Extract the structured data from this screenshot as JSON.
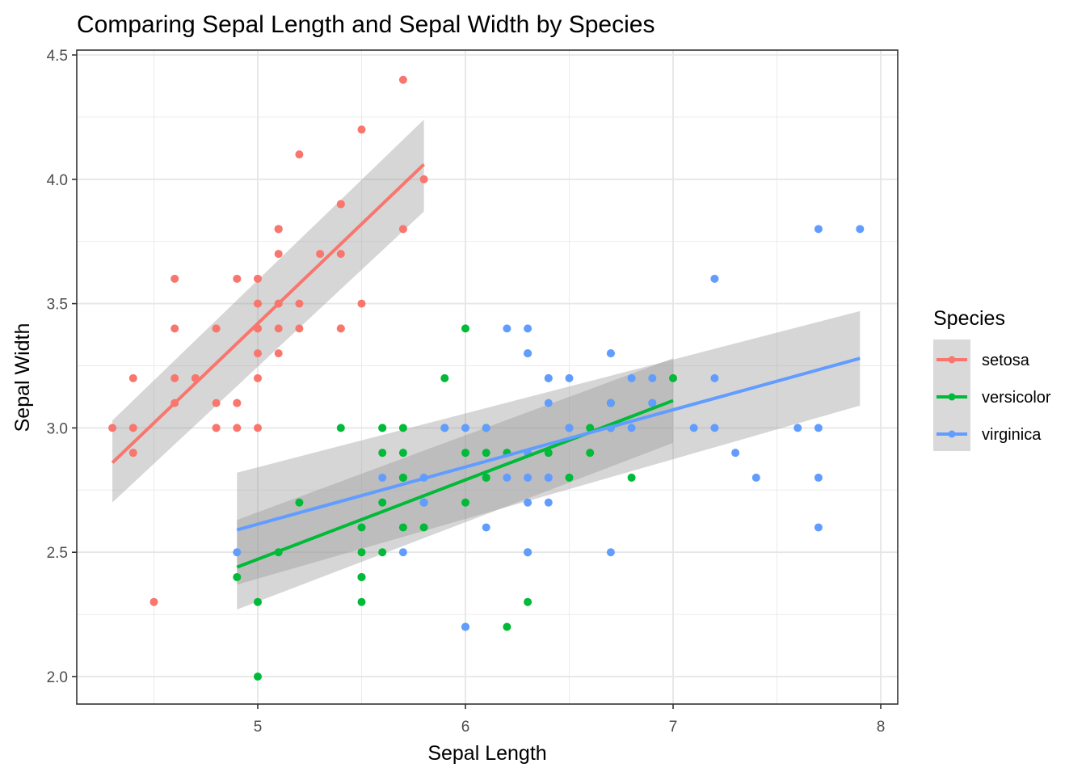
{
  "chart_data": {
    "type": "scatter",
    "title": "Comparing Sepal Length and Sepal Width by Species",
    "xlabel": "Sepal Length",
    "ylabel": "Sepal Width",
    "xlim": [
      4.18,
      8.02
    ],
    "ylim": [
      1.88,
      4.52
    ],
    "xticks": [
      5,
      6,
      7,
      8
    ],
    "xtick_labels": [
      "5",
      "6",
      "7",
      "8"
    ],
    "yticks": [
      2.0,
      2.5,
      3.0,
      3.5,
      4.0,
      4.5
    ],
    "ytick_labels": [
      "2.0",
      "2.5",
      "3.0",
      "3.5",
      "4.0",
      "4.5"
    ],
    "x_minor": [
      4.5,
      5.5,
      6.5,
      7.5
    ],
    "y_minor": [
      2.25,
      2.75,
      3.25,
      3.75,
      4.25
    ],
    "grid": true,
    "legend": {
      "title": "Species",
      "placement": "right"
    },
    "series": [
      {
        "name": "setosa",
        "color": "#F8766D",
        "points": [
          [
            5.1,
            3.5
          ],
          [
            4.9,
            3.0
          ],
          [
            4.7,
            3.2
          ],
          [
            4.6,
            3.1
          ],
          [
            5.0,
            3.6
          ],
          [
            5.4,
            3.9
          ],
          [
            4.6,
            3.4
          ],
          [
            5.0,
            3.4
          ],
          [
            4.4,
            2.9
          ],
          [
            4.9,
            3.1
          ],
          [
            5.4,
            3.7
          ],
          [
            4.8,
            3.4
          ],
          [
            4.8,
            3.0
          ],
          [
            4.3,
            3.0
          ],
          [
            5.8,
            4.0
          ],
          [
            5.7,
            4.4
          ],
          [
            5.4,
            3.9
          ],
          [
            5.1,
            3.5
          ],
          [
            5.7,
            3.8
          ],
          [
            5.1,
            3.8
          ],
          [
            5.4,
            3.4
          ],
          [
            5.1,
            3.7
          ],
          [
            4.6,
            3.6
          ],
          [
            5.1,
            3.3
          ],
          [
            4.8,
            3.4
          ],
          [
            5.0,
            3.0
          ],
          [
            5.0,
            3.4
          ],
          [
            5.2,
            3.5
          ],
          [
            5.2,
            3.4
          ],
          [
            4.7,
            3.2
          ],
          [
            4.8,
            3.1
          ],
          [
            5.4,
            3.4
          ],
          [
            5.2,
            4.1
          ],
          [
            5.5,
            4.2
          ],
          [
            4.9,
            3.1
          ],
          [
            5.0,
            3.2
          ],
          [
            5.5,
            3.5
          ],
          [
            4.9,
            3.6
          ],
          [
            4.4,
            3.0
          ],
          [
            5.1,
            3.4
          ],
          [
            5.0,
            3.5
          ],
          [
            4.5,
            2.3
          ],
          [
            4.4,
            3.2
          ],
          [
            5.0,
            3.5
          ],
          [
            5.1,
            3.8
          ],
          [
            4.8,
            3.0
          ],
          [
            5.1,
            3.8
          ],
          [
            4.6,
            3.2
          ],
          [
            5.3,
            3.7
          ],
          [
            5.0,
            3.3
          ]
        ],
        "fit": {
          "x": [
            4.3,
            5.8
          ],
          "y": [
            2.86,
            4.06
          ],
          "lower": [
            2.7,
            3.87
          ],
          "upper": [
            3.03,
            4.24
          ]
        }
      },
      {
        "name": "versicolor",
        "color": "#00BA38",
        "points": [
          [
            7.0,
            3.2
          ],
          [
            6.4,
            3.2
          ],
          [
            6.9,
            3.1
          ],
          [
            5.5,
            2.3
          ],
          [
            6.5,
            2.8
          ],
          [
            5.7,
            2.8
          ],
          [
            6.3,
            3.3
          ],
          [
            4.9,
            2.4
          ],
          [
            6.6,
            2.9
          ],
          [
            5.2,
            2.7
          ],
          [
            5.0,
            2.0
          ],
          [
            5.9,
            3.0
          ],
          [
            6.0,
            2.2
          ],
          [
            6.1,
            2.9
          ],
          [
            5.6,
            2.9
          ],
          [
            6.7,
            3.1
          ],
          [
            5.6,
            3.0
          ],
          [
            5.8,
            2.7
          ],
          [
            6.2,
            2.2
          ],
          [
            5.6,
            2.5
          ],
          [
            5.9,
            3.2
          ],
          [
            6.1,
            2.8
          ],
          [
            6.3,
            2.5
          ],
          [
            6.1,
            2.8
          ],
          [
            6.4,
            2.9
          ],
          [
            6.6,
            3.0
          ],
          [
            6.8,
            2.8
          ],
          [
            6.7,
            3.0
          ],
          [
            6.0,
            2.9
          ],
          [
            5.7,
            2.6
          ],
          [
            5.5,
            2.4
          ],
          [
            5.5,
            2.4
          ],
          [
            5.8,
            2.7
          ],
          [
            6.0,
            2.7
          ],
          [
            5.4,
            3.0
          ],
          [
            6.0,
            3.4
          ],
          [
            6.7,
            3.1
          ],
          [
            6.3,
            2.3
          ],
          [
            5.6,
            3.0
          ],
          [
            5.5,
            2.5
          ],
          [
            5.5,
            2.6
          ],
          [
            6.1,
            3.0
          ],
          [
            5.8,
            2.6
          ],
          [
            5.0,
            2.3
          ],
          [
            5.6,
            2.7
          ],
          [
            5.7,
            3.0
          ],
          [
            5.7,
            2.9
          ],
          [
            6.2,
            2.9
          ],
          [
            5.1,
            2.5
          ],
          [
            5.7,
            2.8
          ]
        ],
        "fit": {
          "x": [
            4.9,
            7.0
          ],
          "y": [
            2.44,
            3.11
          ],
          "lower": [
            2.27,
            2.94
          ],
          "upper": [
            2.63,
            3.28
          ]
        }
      },
      {
        "name": "virginica",
        "color": "#619CFF",
        "points": [
          [
            6.3,
            3.3
          ],
          [
            5.8,
            2.7
          ],
          [
            7.1,
            3.0
          ],
          [
            6.3,
            2.9
          ],
          [
            6.5,
            3.0
          ],
          [
            7.6,
            3.0
          ],
          [
            4.9,
            2.5
          ],
          [
            7.3,
            2.9
          ],
          [
            6.7,
            2.5
          ],
          [
            7.2,
            3.6
          ],
          [
            6.5,
            3.2
          ],
          [
            6.4,
            2.7
          ],
          [
            6.8,
            3.0
          ],
          [
            5.7,
            2.5
          ],
          [
            5.8,
            2.8
          ],
          [
            6.4,
            3.2
          ],
          [
            6.5,
            3.0
          ],
          [
            7.7,
            3.8
          ],
          [
            7.7,
            2.6
          ],
          [
            6.0,
            2.2
          ],
          [
            6.9,
            3.2
          ],
          [
            5.6,
            2.8
          ],
          [
            7.7,
            2.8
          ],
          [
            6.3,
            2.7
          ],
          [
            6.7,
            3.3
          ],
          [
            7.2,
            3.2
          ],
          [
            6.2,
            2.8
          ],
          [
            6.1,
            3.0
          ],
          [
            6.4,
            2.8
          ],
          [
            7.2,
            3.0
          ],
          [
            7.4,
            2.8
          ],
          [
            7.9,
            3.8
          ],
          [
            6.4,
            2.8
          ],
          [
            6.3,
            2.8
          ],
          [
            6.1,
            2.6
          ],
          [
            7.7,
            3.0
          ],
          [
            6.3,
            3.4
          ],
          [
            6.4,
            3.1
          ],
          [
            6.0,
            3.0
          ],
          [
            6.9,
            3.1
          ],
          [
            6.7,
            3.1
          ],
          [
            6.9,
            3.1
          ],
          [
            5.8,
            2.7
          ],
          [
            6.8,
            3.2
          ],
          [
            6.7,
            3.3
          ],
          [
            6.7,
            3.0
          ],
          [
            6.3,
            2.5
          ],
          [
            6.5,
            3.0
          ],
          [
            6.2,
            3.4
          ],
          [
            5.9,
            3.0
          ]
        ],
        "fit": {
          "x": [
            4.9,
            7.9
          ],
          "y": [
            2.59,
            3.28
          ],
          "lower": [
            2.37,
            3.09
          ],
          "upper": [
            2.82,
            3.47
          ]
        }
      }
    ]
  }
}
